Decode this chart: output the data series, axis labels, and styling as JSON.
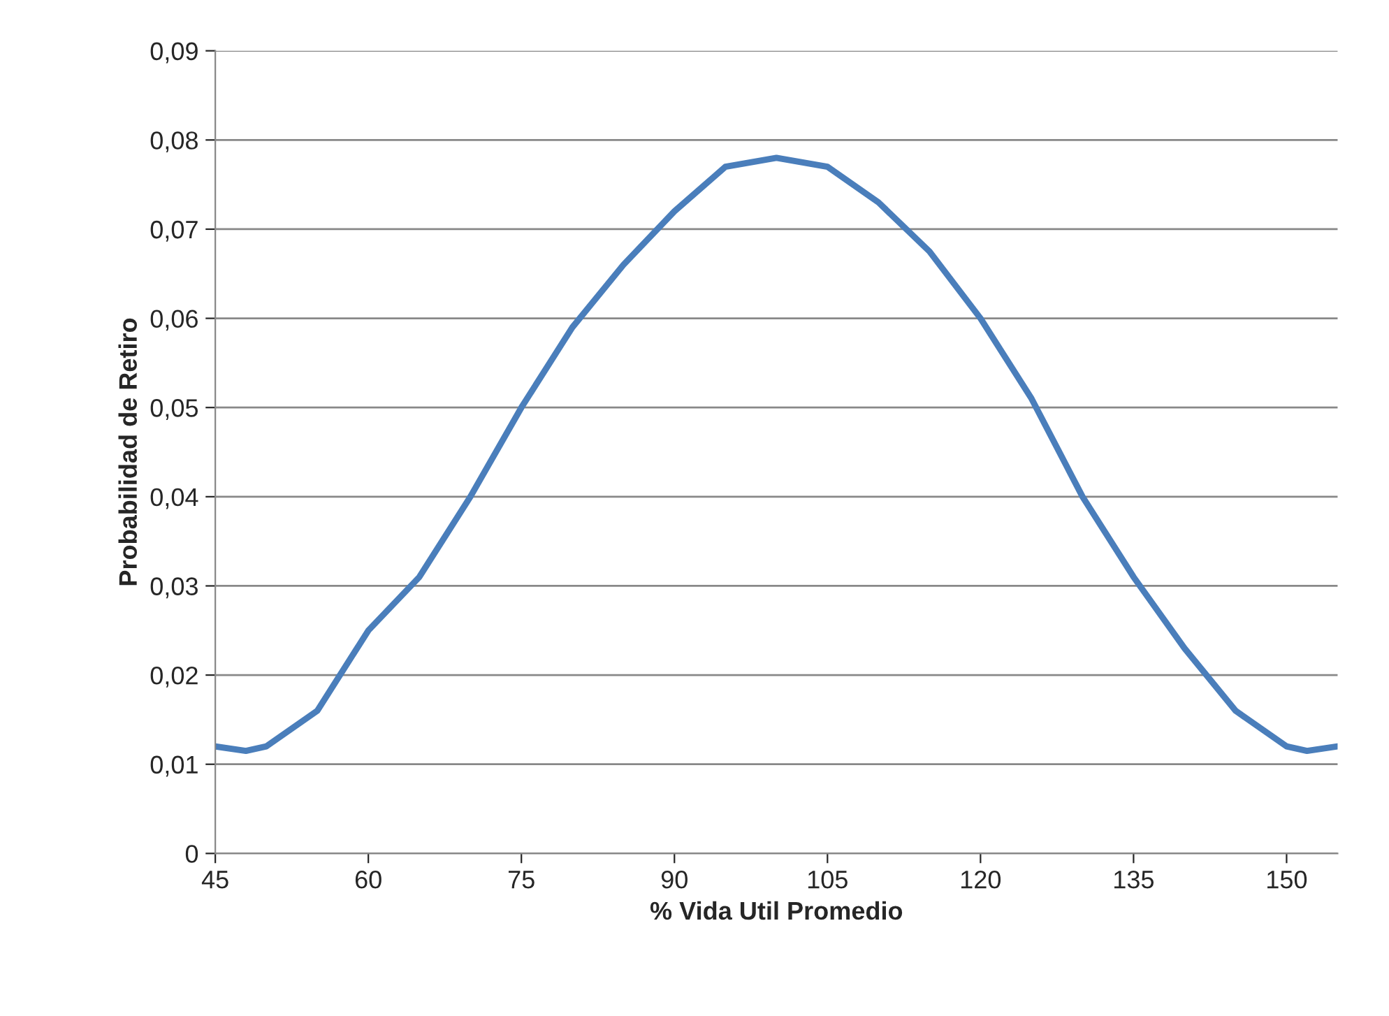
{
  "chart_data": {
    "type": "line",
    "xlabel": "% Vida Util Promedio",
    "ylabel": "Probabilidad de Retiro",
    "x": [
      45,
      48,
      50,
      55,
      60,
      65,
      70,
      75,
      80,
      85,
      90,
      95,
      100,
      105,
      110,
      115,
      120,
      125,
      130,
      135,
      140,
      145,
      150,
      152,
      155
    ],
    "series": [
      {
        "color": "#4a7ebb",
        "values": [
          0.012,
          0.0115,
          0.012,
          0.016,
          0.025,
          0.031,
          0.04,
          0.05,
          0.059,
          0.066,
          0.072,
          0.077,
          0.078,
          0.077,
          0.073,
          0.0675,
          0.06,
          0.051,
          0.04,
          0.031,
          0.023,
          0.016,
          0.012,
          0.0115,
          0.012
        ]
      }
    ],
    "xlim": [
      45,
      155
    ],
    "xticks": [
      45,
      60,
      75,
      90,
      105,
      120,
      135,
      150
    ],
    "ylim": [
      0,
      0.09
    ],
    "yticks": [
      0,
      {
        "value": 0.01,
        "label": "0,01"
      },
      {
        "value": 0.02,
        "label": "0,02"
      },
      {
        "value": 0.03,
        "label": "0,03"
      },
      {
        "value": 0.04,
        "label": "0,04"
      },
      {
        "value": 0.05,
        "label": "0,05"
      },
      {
        "value": 0.06,
        "label": "0,06"
      },
      {
        "value": 0.07,
        "label": "0,07"
      },
      {
        "value": 0.08,
        "label": "0,08"
      },
      {
        "value": 0.09,
        "label": "0,09"
      }
    ],
    "grid": "y",
    "marker": "none",
    "line_style": "solid",
    "legend": false
  }
}
